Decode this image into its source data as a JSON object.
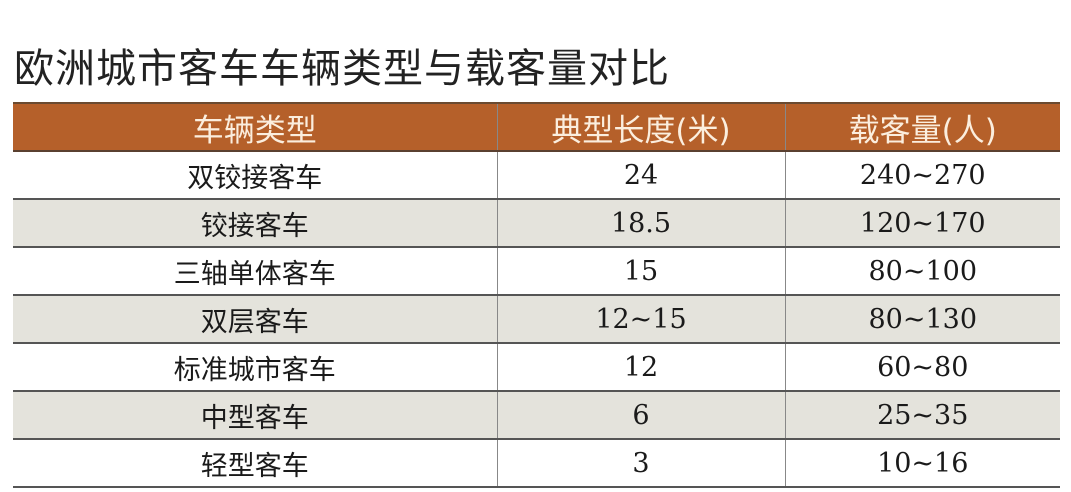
{
  "title": "欧洲城市客车车辆类型与载客量对比",
  "table": {
    "headers": [
      "车辆类型",
      "典型长度(米)",
      "载客量(人)"
    ],
    "rows": [
      [
        "双铰接客车",
        "24",
        "240~270"
      ],
      [
        "铰接客车",
        "18.5",
        "120~170"
      ],
      [
        "三轴单体客车",
        "15",
        "80~100"
      ],
      [
        "双层客车",
        "12~15",
        "80~130"
      ],
      [
        "标准城市客车",
        "12",
        "60~80"
      ],
      [
        "中型客车",
        "6",
        "25~35"
      ],
      [
        "轻型客车",
        "3",
        "10~16"
      ]
    ]
  },
  "colors": {
    "header_bg": "#b5602a",
    "header_text": "#fbeede",
    "alt_row_bg": "#e4e3dc"
  }
}
